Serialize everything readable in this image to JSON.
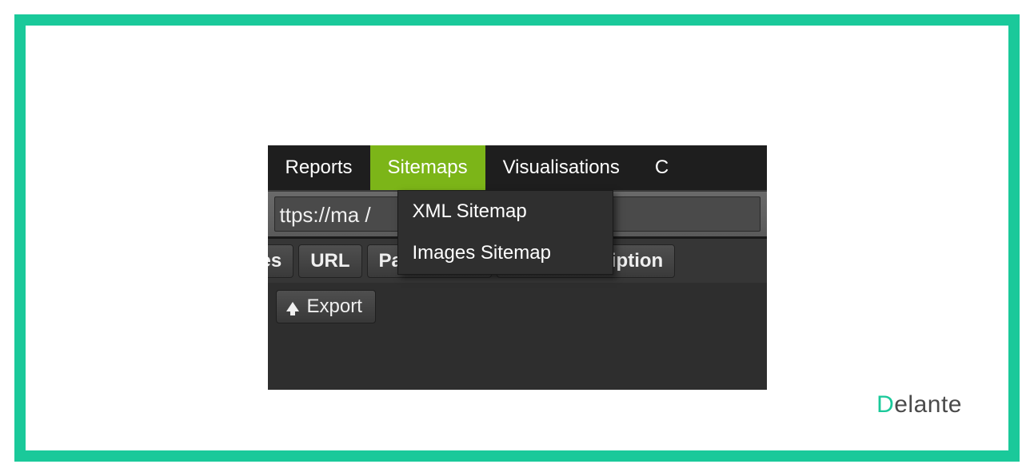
{
  "frame": {
    "border_color": "#1ac99a"
  },
  "menubar": {
    "bg": "#1e1e1e",
    "active_bg": "#7cb518",
    "items": [
      {
        "label": "Reports",
        "active": false
      },
      {
        "label": "Sitemaps",
        "active": true
      },
      {
        "label": "Visualisations",
        "active": false
      },
      {
        "label": "C",
        "active": false
      }
    ]
  },
  "dropdown": {
    "items": [
      {
        "label": "XML Sitemap"
      },
      {
        "label": "Images Sitemap"
      }
    ]
  },
  "urlbar": {
    "text": "ttps://ma                          /"
  },
  "tabs": [
    {
      "label": "es",
      "partial": true
    },
    {
      "label": "URL"
    },
    {
      "label": "Page Titles"
    },
    {
      "label": "Meta Description"
    }
  ],
  "export": {
    "label": "Export"
  },
  "logo": {
    "first_letter": "D",
    "rest": "elante",
    "accent": "#1ac99a",
    "text_color": "#4a4a4a"
  }
}
